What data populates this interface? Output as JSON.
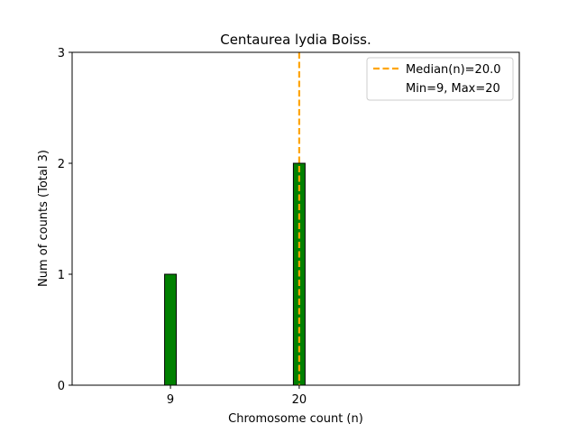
{
  "chart_data": {
    "type": "bar",
    "title": "Centaurea lydia Boiss.",
    "xlabel": "Chromosome count (n)",
    "ylabel": "Num of counts     (Total 3)",
    "xlim": [
      0.6,
      38.8
    ],
    "ylim": [
      0,
      3
    ],
    "x_ticks": [
      9,
      20
    ],
    "y_ticks": [
      0,
      1,
      2,
      3
    ],
    "bars": [
      {
        "x": 9,
        "value": 1
      },
      {
        "x": 20,
        "value": 2
      }
    ],
    "bar_width": 1,
    "bar_color": "#008000",
    "baseline_extent": [
      0.6,
      23.5
    ],
    "median": 20.0,
    "median_color": "#FFA500",
    "legend": {
      "placement": "top-right",
      "entries": [
        "Median(n)=20.0",
        "Min=9, Max=20"
      ]
    }
  }
}
